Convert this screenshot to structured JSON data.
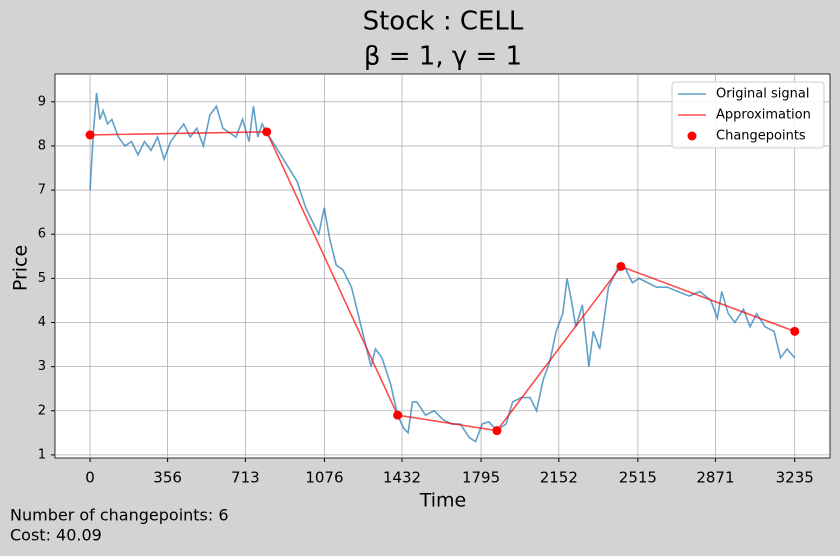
{
  "chart_data": {
    "type": "line",
    "title": "Stock : CELL",
    "subtitle": "β = 1, γ = 1",
    "x_label": "Time",
    "y_label": "Price",
    "xlim": [
      -161,
      3397
    ],
    "ylim": [
      0.93,
      9.63
    ],
    "xticks": [
      0,
      356,
      713,
      1076,
      1432,
      1795,
      2152,
      2515,
      2871,
      3235
    ],
    "yticks": [
      1,
      2,
      3,
      4,
      5,
      6,
      7,
      8,
      9
    ],
    "grid": true,
    "legend": "upper right",
    "annotations": [
      "Number of changepoints: 6",
      "Cost: 40.09"
    ],
    "series": [
      {
        "name": "Original signal",
        "type": "line",
        "color": "#1f77b4",
        "x": [
          0,
          15,
          30,
          45,
          60,
          80,
          100,
          130,
          160,
          190,
          220,
          250,
          280,
          310,
          340,
          370,
          400,
          430,
          460,
          490,
          520,
          550,
          580,
          610,
          640,
          670,
          700,
          730,
          750,
          770,
          790,
          811,
          850,
          900,
          950,
          990,
          1020,
          1050,
          1075,
          1100,
          1130,
          1160,
          1200,
          1240,
          1260,
          1290,
          1310,
          1340,
          1380,
          1412,
          1440,
          1460,
          1480,
          1500,
          1540,
          1580,
          1620,
          1660,
          1700,
          1740,
          1770,
          1800,
          1830,
          1860,
          1880,
          1910,
          1940,
          1980,
          2020,
          2050,
          2080,
          2110,
          2140,
          2170,
          2190,
          2210,
          2230,
          2260,
          2290,
          2310,
          2340,
          2380,
          2400,
          2430,
          2460,
          2490,
          2520,
          2560,
          2600,
          2650,
          2700,
          2750,
          2800,
          2850,
          2880,
          2900,
          2930,
          2960,
          3000,
          3030,
          3060,
          3100,
          3140,
          3170,
          3200,
          3235
        ],
        "values": [
          7.0,
          8.3,
          9.2,
          8.6,
          8.8,
          8.5,
          8.6,
          8.2,
          8.0,
          8.1,
          7.8,
          8.1,
          7.9,
          8.2,
          7.7,
          8.1,
          8.3,
          8.5,
          8.2,
          8.4,
          8.0,
          8.7,
          8.9,
          8.4,
          8.3,
          8.2,
          8.6,
          8.1,
          8.9,
          8.2,
          8.5,
          8.3,
          8.0,
          7.6,
          7.2,
          6.6,
          6.3,
          6.0,
          6.6,
          5.9,
          5.3,
          5.2,
          4.8,
          4.0,
          3.6,
          3.0,
          3.4,
          3.2,
          2.6,
          1.9,
          1.6,
          1.5,
          2.2,
          2.2,
          1.9,
          2.0,
          1.8,
          1.7,
          1.7,
          1.4,
          1.3,
          1.7,
          1.75,
          1.6,
          1.6,
          1.7,
          2.2,
          2.3,
          2.3,
          2.0,
          2.7,
          3.1,
          3.8,
          4.2,
          5.0,
          4.5,
          3.9,
          4.4,
          3.0,
          3.8,
          3.4,
          4.8,
          5.0,
          5.3,
          5.2,
          4.9,
          5.0,
          4.9,
          4.8,
          4.8,
          4.7,
          4.6,
          4.7,
          4.5,
          4.1,
          4.7,
          4.2,
          4.0,
          4.3,
          3.9,
          4.2,
          3.9,
          3.8,
          3.2,
          3.4,
          3.2
        ]
      },
      {
        "name": "Approximation",
        "type": "line",
        "color": "#ff0000",
        "x": [
          0,
          811,
          1412,
          1868,
          2437,
          3235
        ],
        "values": [
          8.25,
          8.32,
          1.9,
          1.55,
          5.27,
          3.8
        ]
      },
      {
        "name": "Changepoints",
        "type": "scatter",
        "color": "#ff0000",
        "x": [
          0,
          811,
          1412,
          1868,
          2437,
          3235
        ],
        "values": [
          8.25,
          8.32,
          1.9,
          1.55,
          5.27,
          3.8
        ]
      }
    ]
  }
}
